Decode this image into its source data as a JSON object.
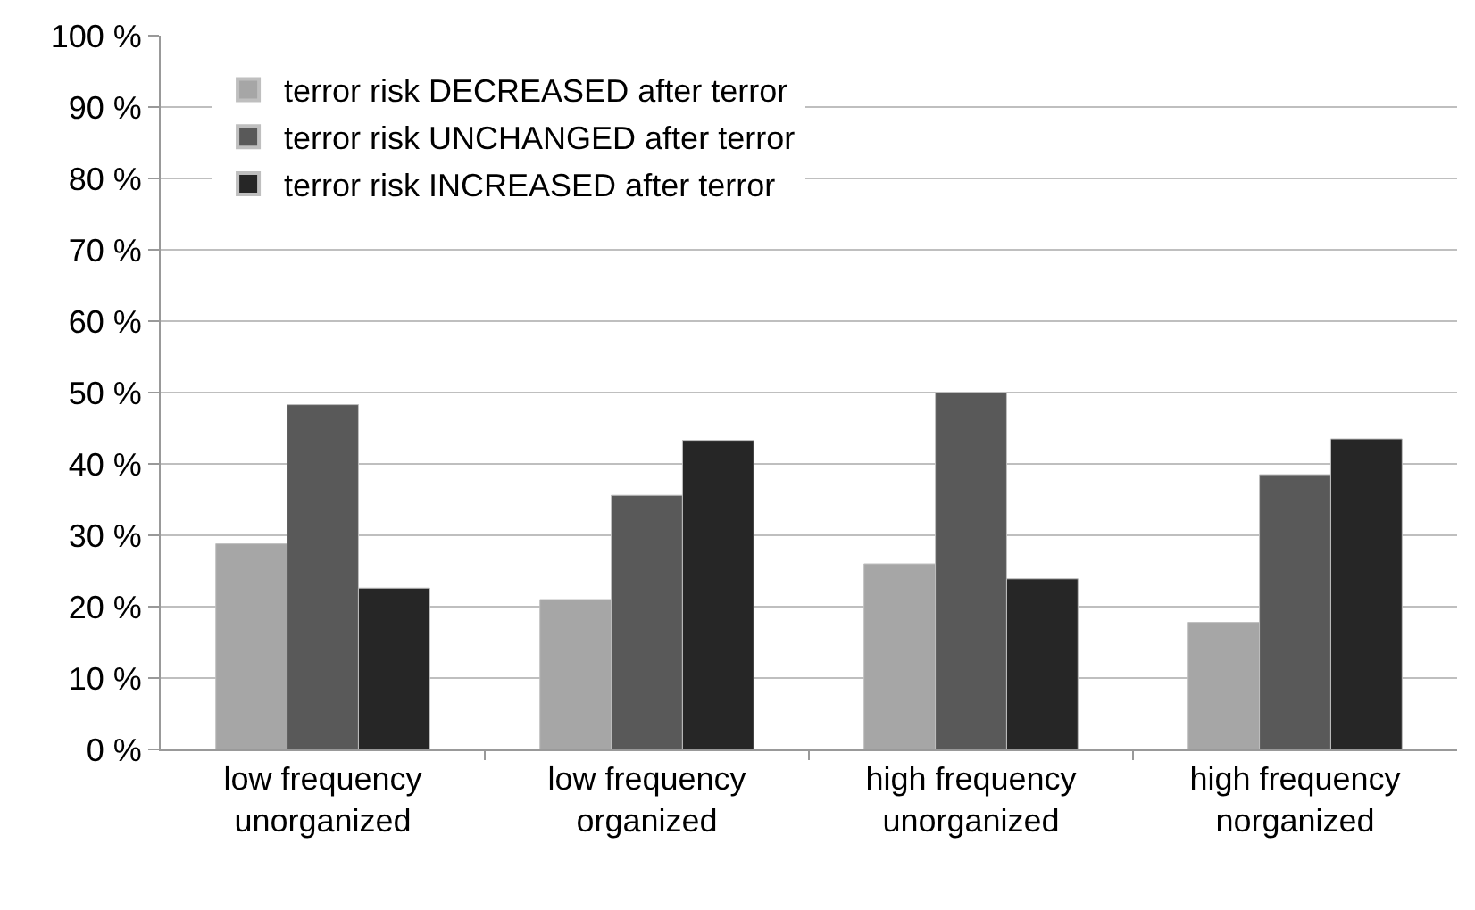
{
  "chart_data": {
    "type": "bar",
    "categories": [
      "low frequency\nunorganized",
      "low frequency\norganized",
      "high frequency\nunorganized",
      "high frequency\nnorganized"
    ],
    "series": [
      {
        "name": "terror risk DECREASED after terror",
        "color": "#a6a6a6",
        "values": [
          28.8,
          21.0,
          26.0,
          17.8
        ]
      },
      {
        "name": "terror risk UNCHANGED after terror",
        "color": "#595959",
        "values": [
          48.3,
          35.6,
          50.0,
          38.5
        ]
      },
      {
        "name": "terror risk INCREASED after terror",
        "color": "#262626",
        "values": [
          22.6,
          43.3,
          23.9,
          43.5
        ]
      }
    ],
    "ylim": [
      0,
      100
    ],
    "yticks": [
      {
        "value": 0,
        "label": "0 %"
      },
      {
        "value": 10,
        "label": "10 %"
      },
      {
        "value": 20,
        "label": "20 %"
      },
      {
        "value": 30,
        "label": "30 %"
      },
      {
        "value": 40,
        "label": "40 %"
      },
      {
        "value": 50,
        "label": "50 %"
      },
      {
        "value": 60,
        "label": "60 %"
      },
      {
        "value": 70,
        "label": "70 %"
      },
      {
        "value": 80,
        "label": "80 %"
      },
      {
        "value": 90,
        "label": "90 %"
      },
      {
        "value": 100,
        "label": "100 %"
      }
    ],
    "grid": "y",
    "legend": "top left"
  }
}
